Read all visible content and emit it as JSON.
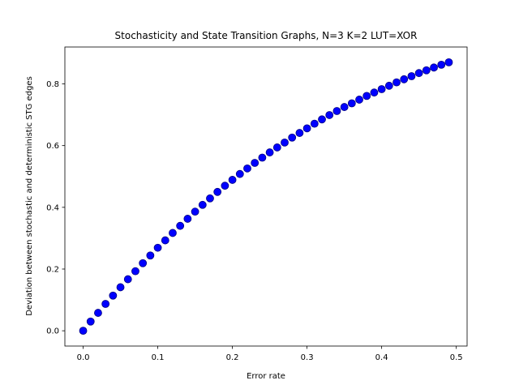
{
  "chart_data": {
    "type": "scatter",
    "title": "Stochasticity and State Transition Graphs, N=3 K=2 LUT=XOR",
    "xlabel": "Error rate",
    "ylabel": "Deviation between stochastic and deterministic STG edges",
    "xlim": [
      -0.0245,
      0.5145
    ],
    "ylim": [
      -0.0495,
      0.9195
    ],
    "xticks": [
      0.0,
      0.1,
      0.2,
      0.3,
      0.4,
      0.5
    ],
    "xtick_labels": [
      "0.0",
      "0.1",
      "0.2",
      "0.3",
      "0.4",
      "0.5"
    ],
    "yticks": [
      0.0,
      0.2,
      0.4,
      0.6,
      0.8
    ],
    "ytick_labels": [
      "0.0",
      "0.2",
      "0.4",
      "0.6",
      "0.8"
    ],
    "grid": false,
    "marker_color": "#0000ff",
    "series": [
      {
        "x": [
          0.0,
          0.01,
          0.02,
          0.03,
          0.04,
          0.05,
          0.06,
          0.07,
          0.08,
          0.09,
          0.1,
          0.11,
          0.12,
          0.13,
          0.14,
          0.15,
          0.16,
          0.17,
          0.18,
          0.19,
          0.2,
          0.21,
          0.22,
          0.23,
          0.24,
          0.25,
          0.26,
          0.27,
          0.28,
          0.29,
          0.3,
          0.31,
          0.32,
          0.33,
          0.34,
          0.35,
          0.36,
          0.37,
          0.38,
          0.39,
          0.4,
          0.41,
          0.42,
          0.43,
          0.44,
          0.45,
          0.46,
          0.47,
          0.48,
          0.49
        ],
        "y": [
          0.0,
          0.03,
          0.058,
          0.087,
          0.114,
          0.141,
          0.167,
          0.193,
          0.219,
          0.244,
          0.269,
          0.293,
          0.317,
          0.34,
          0.363,
          0.386,
          0.408,
          0.429,
          0.45,
          0.47,
          0.489,
          0.508,
          0.526,
          0.544,
          0.561,
          0.578,
          0.594,
          0.61,
          0.626,
          0.641,
          0.656,
          0.671,
          0.685,
          0.699,
          0.712,
          0.725,
          0.737,
          0.749,
          0.761,
          0.772,
          0.783,
          0.794,
          0.805,
          0.815,
          0.825,
          0.835,
          0.844,
          0.853,
          0.862,
          0.87
        ]
      }
    ]
  }
}
